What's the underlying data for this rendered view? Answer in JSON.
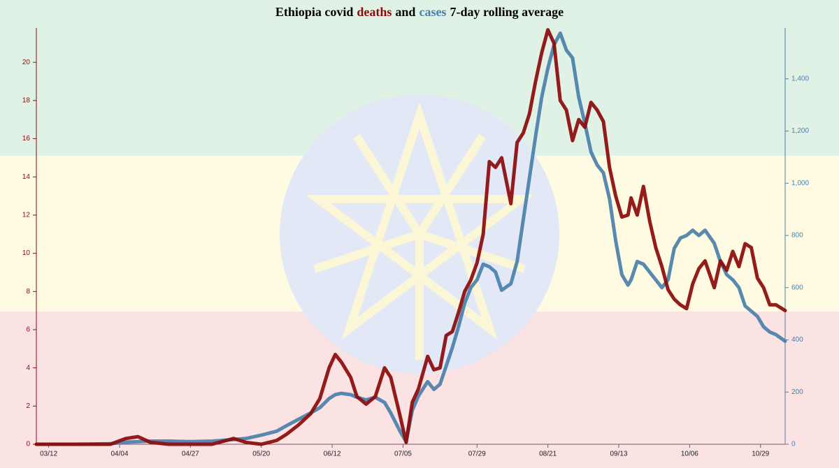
{
  "chart_data": {
    "type": "line",
    "title": [
      "Ethiopia covid",
      "and",
      "7-day rolling average"
    ],
    "x": [
      "03/08",
      "03/20",
      "04/01",
      "04/06",
      "04/10",
      "04/14",
      "04/20",
      "04/27",
      "05/04",
      "05/11",
      "05/15",
      "05/20",
      "05/25",
      "05/28",
      "06/01",
      "06/05",
      "06/08",
      "06/11",
      "06/13",
      "06/15",
      "06/18",
      "06/20",
      "06/23",
      "06/26",
      "06/29",
      "07/01",
      "07/04",
      "07/06",
      "07/08",
      "07/10",
      "07/13",
      "07/15",
      "07/17",
      "07/19",
      "07/21",
      "07/23",
      "07/25",
      "07/27",
      "07/29",
      "07/31",
      "08/02",
      "08/04",
      "08/06",
      "08/09",
      "08/11",
      "08/13",
      "08/15",
      "08/17",
      "08/19",
      "08/21",
      "08/23",
      "08/25",
      "08/27",
      "08/29",
      "08/31",
      "09/02",
      "09/04",
      "09/06",
      "09/08",
      "09/10",
      "09/12",
      "09/14",
      "09/16",
      "09/17",
      "09/19",
      "09/21",
      "09/23",
      "09/25",
      "09/27",
      "09/29",
      "10/01",
      "10/03",
      "10/05",
      "10/07",
      "10/09",
      "10/11",
      "10/14",
      "10/16",
      "10/18",
      "10/20",
      "10/22",
      "10/24",
      "10/26",
      "10/28",
      "10/30",
      "11/01",
      "11/03",
      "11/06"
    ],
    "series": [
      {
        "name": "deaths",
        "color": "#8b0a0a",
        "values": [
          0,
          0,
          0,
          0.3,
          0.4,
          0.1,
          0,
          0,
          0,
          0.3,
          0.1,
          0,
          0.2,
          0.5,
          1,
          1.6,
          2.4,
          4,
          4.7,
          4.3,
          3.5,
          2.5,
          2.1,
          2.5,
          4.0,
          3.5,
          1.5,
          0.1,
          2.2,
          2.9,
          4.6,
          3.9,
          4.0,
          5.7,
          5.9,
          6.9,
          8.0,
          8.6,
          9.5,
          11,
          14.8,
          14.5,
          15,
          12.6,
          15.8,
          16.3,
          17.3,
          19,
          20.5,
          21.7,
          21,
          18,
          17.5,
          15.9,
          17,
          16.6,
          17.9,
          17.5,
          16.9,
          14.5,
          13,
          11.9,
          12,
          12.9,
          12,
          13.5,
          11.7,
          10.3,
          9.3,
          8.1,
          7.6,
          7.3,
          7.1,
          8.4,
          9.2,
          9.6,
          8.2,
          9.6,
          9.1,
          10.1,
          9.3,
          10.5,
          10.3,
          8.7,
          8.2,
          7.3,
          7.3,
          7.0
        ]
      },
      {
        "name": "cases",
        "color": "#4a80aa",
        "axis": "y2",
        "values": [
          0,
          0,
          2,
          8,
          10,
          12,
          12,
          10,
          12,
          18,
          22,
          35,
          50,
          70,
          95,
          120,
          140,
          175,
          190,
          195,
          190,
          180,
          170,
          180,
          160,
          120,
          50,
          10,
          130,
          185,
          240,
          210,
          230,
          300,
          370,
          450,
          540,
          600,
          630,
          690,
          680,
          660,
          590,
          615,
          700,
          860,
          1020,
          1180,
          1330,
          1440,
          1530,
          1575,
          1510,
          1480,
          1330,
          1230,
          1120,
          1070,
          1040,
          940,
          780,
          650,
          610,
          630,
          700,
          690,
          660,
          630,
          600,
          630,
          750,
          790,
          800,
          820,
          800,
          820,
          770,
          700,
          650,
          630,
          600,
          530,
          510,
          490,
          450,
          430,
          420,
          395
        ]
      }
    ],
    "xlim": [
      "03/08",
      "11/06"
    ],
    "xticks": [
      "03/12",
      "04/04",
      "04/27",
      "05/20",
      "06/12",
      "07/05",
      "07/29",
      "08/21",
      "09/13",
      "10/06",
      "10/29"
    ],
    "ylim": [
      0,
      21.8
    ],
    "yticks": [
      0,
      2,
      4,
      6,
      8,
      10,
      12,
      14,
      16,
      18,
      20
    ],
    "y2lim": [
      0,
      1595
    ],
    "y2ticks": [
      0,
      200,
      400,
      600,
      800,
      {
        "value": 1000,
        "label": "1,000"
      },
      {
        "value": 1200,
        "label": "1,200"
      },
      {
        "value": 1400,
        "label": "1,400"
      }
    ]
  }
}
